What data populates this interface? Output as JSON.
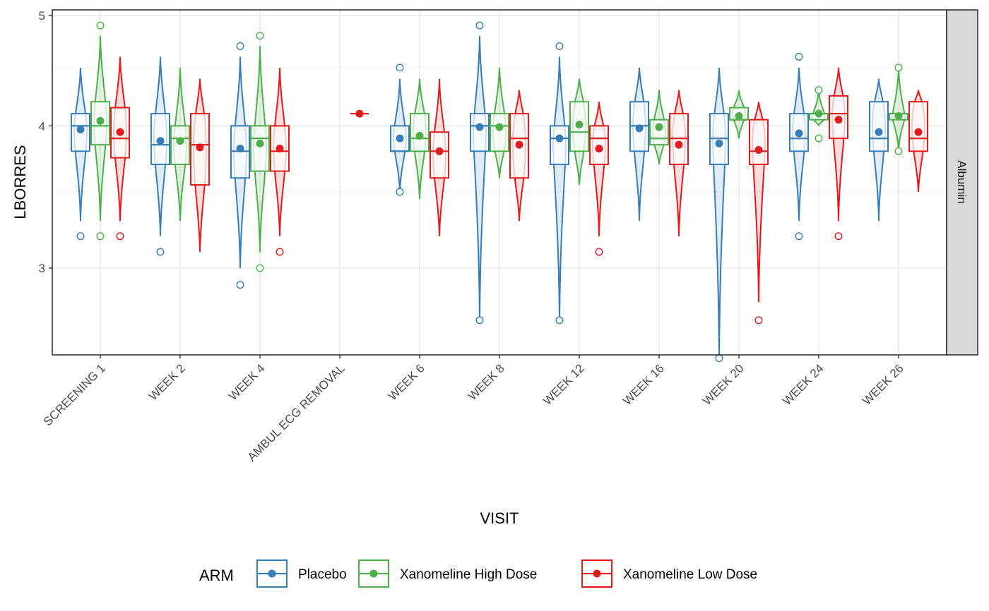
{
  "colors": {
    "Placebo": "#377EB8",
    "Xanomeline High Dose": "#4DAF4A",
    "Xanomeline Low Dose": "#E41A1C",
    "strip_fill": "#D9D9D9",
    "grid": "#EBEBEB",
    "panel_border": "#333333"
  },
  "chart_data": {
    "type": "boxplot-violin",
    "xlabel": "VISIT",
    "ylabel": "LBORRES",
    "facet_label": "Albumin",
    "y_scale": "log",
    "ylim": [
      2.43,
      5.0
    ],
    "y_ticks": [
      3,
      4,
      5
    ],
    "grid": true,
    "legend": {
      "title": "ARM",
      "position": "bottom",
      "entries": [
        "Placebo",
        "Xanomeline High Dose",
        "Xanomeline Low Dose"
      ]
    },
    "categories": [
      "SCREENING 1",
      "WEEK 2",
      "WEEK 4",
      "AMBUL ECG REMOVAL",
      "WEEK 6",
      "WEEK 8",
      "WEEK 12",
      "WEEK 16",
      "WEEK 20",
      "WEEK 24",
      "WEEK 26"
    ],
    "series": [
      {
        "name": "Placebo",
        "boxes": [
          {
            "visit": "SCREENING 1",
            "q1": 3.8,
            "median": 4.0,
            "q3": 4.1,
            "mean": 3.97,
            "vmin": 3.3,
            "vmax": 4.5,
            "outliers": [
              3.2
            ]
          },
          {
            "visit": "WEEK 2",
            "q1": 3.7,
            "median": 3.85,
            "q3": 4.1,
            "mean": 3.88,
            "vmin": 3.2,
            "vmax": 4.6,
            "outliers": [
              3.1
            ]
          },
          {
            "visit": "WEEK 4",
            "q1": 3.6,
            "median": 3.8,
            "q3": 4.0,
            "mean": 3.82,
            "vmin": 3.0,
            "vmax": 4.6,
            "outliers": [
              2.9,
              4.7
            ]
          },
          {
            "visit": "WEEK 6",
            "q1": 3.8,
            "median": 3.8,
            "q3": 4.0,
            "mean": 3.9,
            "vmin": 3.5,
            "vmax": 4.4,
            "outliers": [
              3.5,
              4.5
            ]
          },
          {
            "visit": "WEEK 8",
            "q1": 3.8,
            "median": 4.0,
            "q3": 4.1,
            "mean": 3.99,
            "vmin": 2.7,
            "vmax": 4.8,
            "outliers": [
              2.7,
              4.9
            ]
          },
          {
            "visit": "WEEK 12",
            "q1": 3.7,
            "median": 3.9,
            "q3": 4.0,
            "mean": 3.9,
            "vmin": 2.7,
            "vmax": 4.6,
            "outliers": [
              2.7,
              4.7
            ]
          },
          {
            "visit": "WEEK 16",
            "q1": 3.8,
            "median": 4.0,
            "q3": 4.2,
            "mean": 3.98,
            "vmin": 3.3,
            "vmax": 4.5,
            "outliers": []
          },
          {
            "visit": "WEEK 20",
            "q1": 3.7,
            "median": 3.9,
            "q3": 4.1,
            "mean": 3.86,
            "vmin": 2.5,
            "vmax": 4.5,
            "outliers": [
              2.5
            ]
          },
          {
            "visit": "WEEK 24",
            "q1": 3.8,
            "median": 3.9,
            "q3": 4.1,
            "mean": 3.94,
            "vmin": 3.3,
            "vmax": 4.5,
            "outliers": [
              3.2,
              4.6
            ]
          },
          {
            "visit": "WEEK 26",
            "q1": 3.8,
            "median": 3.9,
            "q3": 4.2,
            "mean": 3.95,
            "vmin": 3.3,
            "vmax": 4.4,
            "outliers": []
          }
        ]
      },
      {
        "name": "Xanomeline High Dose",
        "boxes": [
          {
            "visit": "SCREENING 1",
            "q1": 3.85,
            "median": 4.0,
            "q3": 4.2,
            "mean": 4.04,
            "vmin": 3.3,
            "vmax": 4.8,
            "outliers": [
              3.2,
              4.9
            ]
          },
          {
            "visit": "WEEK 2",
            "q1": 3.7,
            "median": 3.9,
            "q3": 4.0,
            "mean": 3.88,
            "vmin": 3.3,
            "vmax": 4.5,
            "outliers": []
          },
          {
            "visit": "WEEK 4",
            "q1": 3.65,
            "median": 3.9,
            "q3": 4.0,
            "mean": 3.86,
            "vmin": 3.1,
            "vmax": 4.7,
            "outliers": [
              3.0,
              4.8
            ]
          },
          {
            "visit": "WEEK 6",
            "q1": 3.8,
            "median": 3.9,
            "q3": 4.1,
            "mean": 3.92,
            "vmin": 3.45,
            "vmax": 4.4,
            "outliers": []
          },
          {
            "visit": "WEEK 8",
            "q1": 3.8,
            "median": 4.0,
            "q3": 4.1,
            "mean": 3.99,
            "vmin": 3.6,
            "vmax": 4.5,
            "outliers": []
          },
          {
            "visit": "WEEK 12",
            "q1": 3.8,
            "median": 3.95,
            "q3": 4.2,
            "mean": 4.01,
            "vmin": 3.55,
            "vmax": 4.4,
            "outliers": []
          },
          {
            "visit": "WEEK 16",
            "q1": 3.85,
            "median": 3.9,
            "q3": 4.05,
            "mean": 3.99,
            "vmin": 3.7,
            "vmax": 4.3,
            "outliers": []
          },
          {
            "visit": "WEEK 20",
            "q1": 4.05,
            "median": 4.05,
            "q3": 4.15,
            "mean": 4.08,
            "vmin": 3.9,
            "vmax": 4.3,
            "outliers": []
          },
          {
            "visit": "WEEK 24",
            "q1": 4.05,
            "median": 4.1,
            "q3": 4.1,
            "mean": 4.1,
            "vmin": 4.0,
            "vmax": 4.3,
            "outliers": [
              3.9,
              4.3
            ]
          },
          {
            "visit": "WEEK 26",
            "q1": 4.05,
            "median": 4.1,
            "q3": 4.1,
            "mean": 4.08,
            "vmin": 3.8,
            "vmax": 4.5,
            "outliers": [
              3.8,
              4.5
            ]
          }
        ]
      },
      {
        "name": "Xanomeline Low Dose",
        "boxes": [
          {
            "visit": "SCREENING 1",
            "q1": 3.75,
            "median": 3.9,
            "q3": 4.15,
            "mean": 3.95,
            "vmin": 3.3,
            "vmax": 4.6,
            "outliers": [
              3.2
            ]
          },
          {
            "visit": "WEEK 2",
            "q1": 3.55,
            "median": 3.85,
            "q3": 4.1,
            "mean": 3.83,
            "vmin": 3.1,
            "vmax": 4.4,
            "outliers": []
          },
          {
            "visit": "WEEK 4",
            "q1": 3.65,
            "median": 3.8,
            "q3": 4.0,
            "mean": 3.82,
            "vmin": 3.2,
            "vmax": 4.5,
            "outliers": [
              3.1
            ]
          },
          {
            "visit": "AMBUL ECG REMOVAL",
            "q1": 4.1,
            "median": 4.1,
            "q3": 4.1,
            "mean": 4.1,
            "vmin": 4.1,
            "vmax": 4.1,
            "outliers": []
          },
          {
            "visit": "WEEK 6",
            "q1": 3.6,
            "median": 3.8,
            "q3": 3.95,
            "mean": 3.8,
            "vmin": 3.2,
            "vmax": 4.4,
            "outliers": []
          },
          {
            "visit": "WEEK 8",
            "q1": 3.6,
            "median": 3.9,
            "q3": 4.1,
            "mean": 3.85,
            "vmin": 3.3,
            "vmax": 4.3,
            "outliers": []
          },
          {
            "visit": "WEEK 12",
            "q1": 3.7,
            "median": 3.9,
            "q3": 4.0,
            "mean": 3.82,
            "vmin": 3.2,
            "vmax": 4.2,
            "outliers": [
              3.1
            ]
          },
          {
            "visit": "WEEK 16",
            "q1": 3.7,
            "median": 3.9,
            "q3": 4.1,
            "mean": 3.85,
            "vmin": 3.2,
            "vmax": 4.3,
            "outliers": []
          },
          {
            "visit": "WEEK 20",
            "q1": 3.7,
            "median": 3.8,
            "q3": 4.05,
            "mean": 3.81,
            "vmin": 2.8,
            "vmax": 4.2,
            "outliers": [
              2.7
            ]
          },
          {
            "visit": "WEEK 24",
            "q1": 3.9,
            "median": 4.1,
            "q3": 4.25,
            "mean": 4.05,
            "vmin": 3.3,
            "vmax": 4.5,
            "outliers": [
              3.2
            ]
          },
          {
            "visit": "WEEK 26",
            "q1": 3.8,
            "median": 3.9,
            "q3": 4.2,
            "mean": 3.95,
            "vmin": 3.5,
            "vmax": 4.3,
            "outliers": []
          }
        ]
      }
    ]
  }
}
